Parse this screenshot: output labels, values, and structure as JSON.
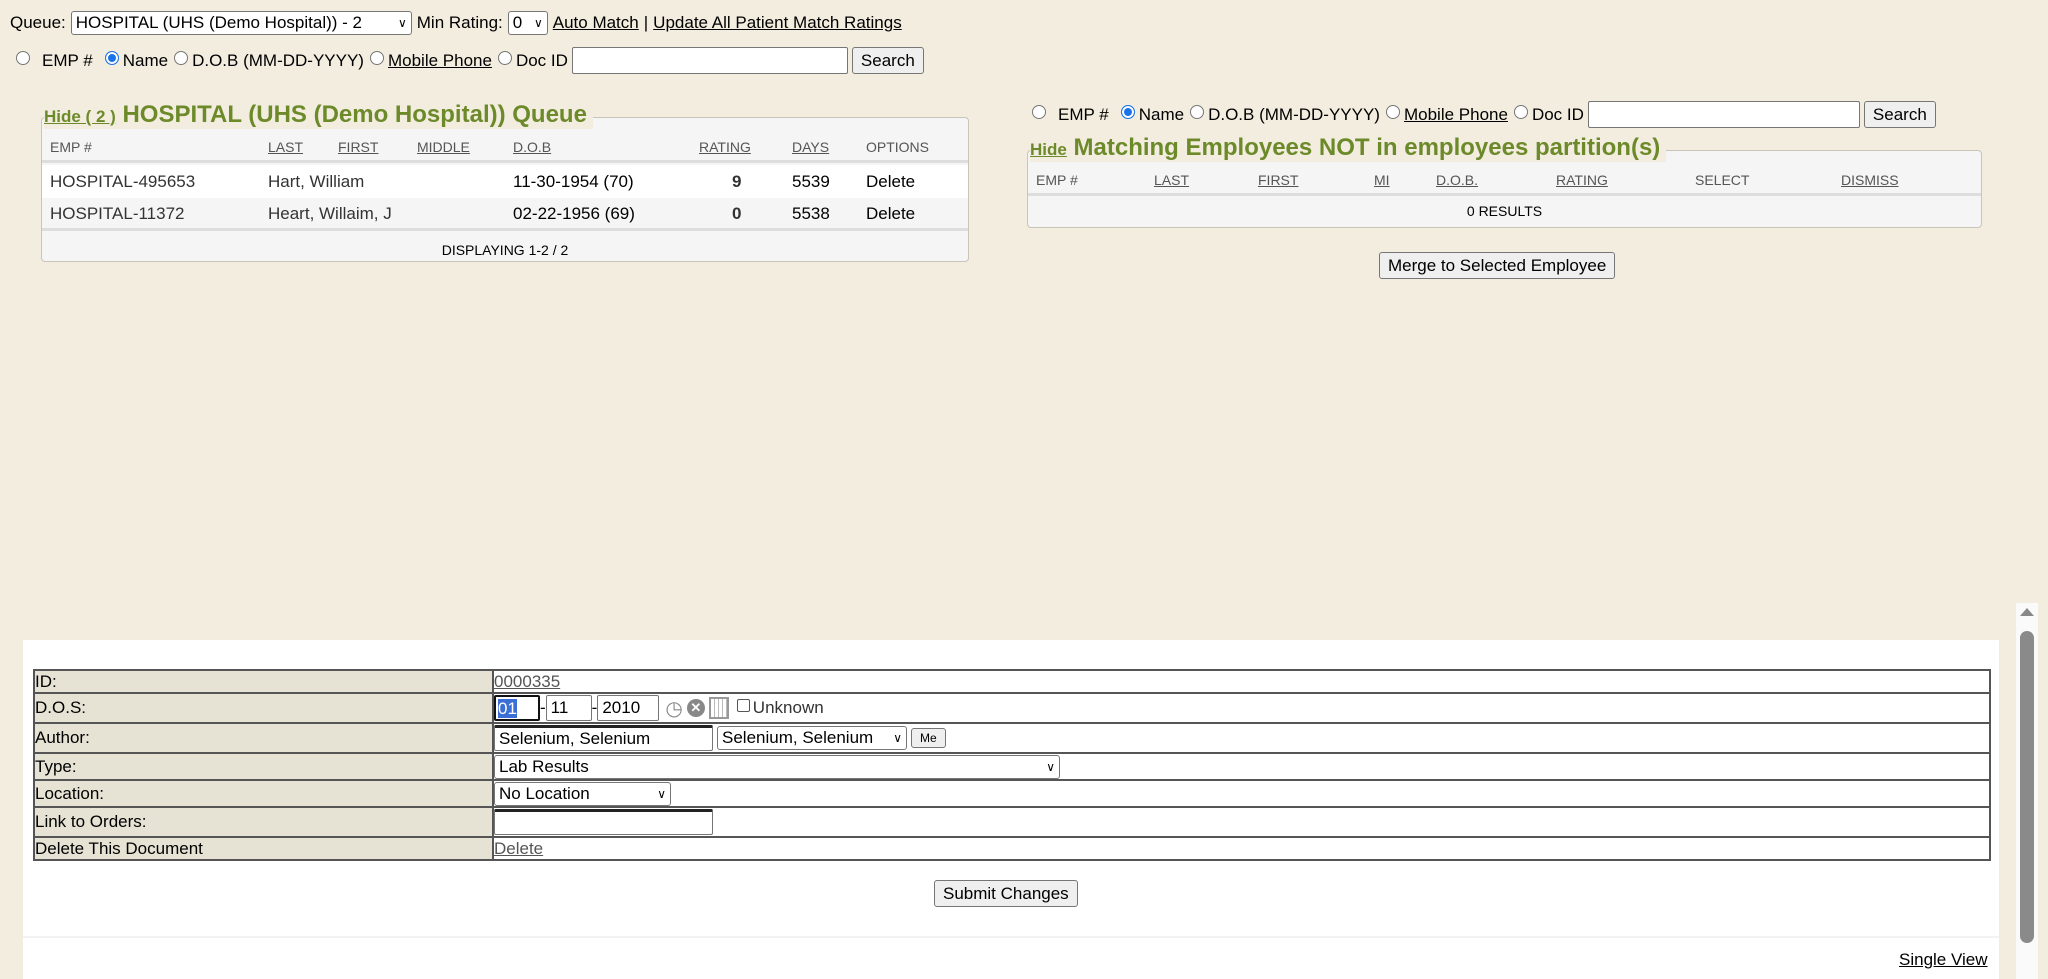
{
  "top": {
    "queue_label": "Queue:",
    "queue_value": "HOSPITAL (UHS (Demo Hospital)) - 2",
    "min_rating_label": "Min Rating:",
    "min_rating_value": "0",
    "auto_match": "Auto Match",
    "separator": "|",
    "update_all": "Update All Patient Match Ratings"
  },
  "search": {
    "emp": "EMP #",
    "name": "Name",
    "dob": "D.O.B (MM-DD-YYYY)",
    "mobile": "Mobile Phone",
    "docid": "Doc ID",
    "selected": "Name",
    "search_button": "Search",
    "query": ""
  },
  "queue_panel": {
    "hide": "Hide ( 2 )",
    "title": "HOSPITAL (UHS (Demo Hospital)) Queue",
    "columns": [
      "EMP #",
      "LAST",
      "FIRST",
      "MIDDLE",
      "D.O.B",
      "RATING",
      "DAYS",
      "OPTIONS"
    ],
    "rows": [
      {
        "emp": "HOSPITAL-495653",
        "name": "Hart, William",
        "dob": "11-30-1954 (70)",
        "rating": "9",
        "days": "5539",
        "option": "Delete"
      },
      {
        "emp": "HOSPITAL-11372",
        "name": "Heart, Willaim, J",
        "dob": "02-22-1956 (69)",
        "rating": "0",
        "days": "5538",
        "option": "Delete"
      }
    ],
    "footer": "DISPLAYING 1-2 / 2"
  },
  "match_panel": {
    "hide": "Hide",
    "title": "Matching Employees NOT in employees partition(s)",
    "columns": [
      "EMP #",
      "LAST",
      "FIRST",
      "MI",
      "D.O.B.",
      "RATING",
      "SELECT",
      "DISMISS"
    ],
    "results": "0 RESULTS",
    "merge_button": "Merge to Selected Employee"
  },
  "document": {
    "id_label": "ID:",
    "id_value": "0000335",
    "dos_label": "D.O.S:",
    "dos_month": "01",
    "dos_day": "11",
    "dos_year": "2010",
    "dash": "-",
    "unknown_label": "Unknown",
    "author_label": "Author:",
    "author_text": "Selenium, Selenium",
    "author_select": "Selenium, Selenium",
    "me_button": "Me",
    "type_label": "Type:",
    "type_value": "Lab Results",
    "location_label": "Location:",
    "location_value": "No Location",
    "link_label": "Link to Orders:",
    "delete_label": "Delete This Document",
    "delete_link": "Delete",
    "submit": "Submit Changes",
    "single_view": "Single View"
  },
  "colors": {
    "background": "#f3ede0",
    "accent_green": "#6d8a2a",
    "label_cell": "#e6e2d4"
  }
}
